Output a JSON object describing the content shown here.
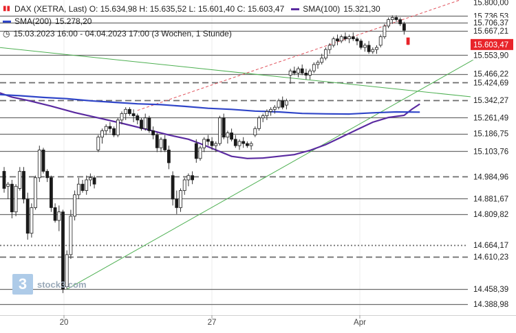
{
  "header": {
    "icon": "candlestick-icon",
    "line1": "DAX (XETRA, Last)  O: 15.634,98  H: 15.635,52  L: 15.601,40  C: 15.603,47",
    "sma100_label": "SMA(100)",
    "sma100_value": "15.321,30",
    "sma200_label": "SMA(200)",
    "sma200_value": "15.278,20",
    "range": "15.03.2023 16:00 - 04.04.2023 17:00  (3 Wochen, 1 Stunde)"
  },
  "logo": {
    "mark": "3",
    "text": "stock3.com"
  },
  "colors": {
    "sma100": "#5a2aa0",
    "sma200": "#2f45c8",
    "trend_green": "#4caf50",
    "resistance_red": "#e0505a",
    "last_price_bg": "#e8242a"
  },
  "chart_data": {
    "type": "candlestick",
    "instrument": "DAX (XETRA, Last)",
    "interval": "1 Stunde",
    "ylim": [
      14340,
      15800
    ],
    "xaxis_ticks": [
      {
        "label": "20",
        "date": "2023-03-20"
      },
      {
        "label": "27",
        "date": "2023-03-27"
      },
      {
        "label": "Apr",
        "date": "2023-04-03"
      }
    ],
    "price_labels": [
      15800.0,
      15736.53,
      15706.37,
      15667.21,
      15553.9,
      15466.22,
      15424.69,
      15342.27,
      15261.49,
      15186.75,
      15103.76,
      14984.96,
      14881.67,
      14809.82,
      14664.17,
      14610.23,
      14458.39,
      14388.98
    ],
    "last_price": 15603.47,
    "ohlc_last": {
      "open": 15634.98,
      "high": 15635.52,
      "low": 15601.4,
      "close": 15603.47
    },
    "levels": [
      {
        "value": 15736.53,
        "style": "solid"
      },
      {
        "value": 15706.37,
        "style": "solid"
      },
      {
        "value": 15667.21,
        "style": "solid"
      },
      {
        "value": 15553.9,
        "style": "solid"
      },
      {
        "value": 15466.22,
        "style": "solid"
      },
      {
        "value": 15424.69,
        "style": "dashed"
      },
      {
        "value": 15342.27,
        "style": "dashed"
      },
      {
        "value": 15261.49,
        "style": "solid"
      },
      {
        "value": 15186.75,
        "style": "solid"
      },
      {
        "value": 15103.76,
        "style": "solid"
      },
      {
        "value": 14984.96,
        "style": "dashed"
      },
      {
        "value": 14881.67,
        "style": "solid"
      },
      {
        "value": 14809.82,
        "style": "solid"
      },
      {
        "value": 14664.17,
        "style": "dotted"
      },
      {
        "value": 14610.23,
        "style": "dashed"
      },
      {
        "value": 14458.39,
        "style": "solid"
      },
      {
        "value": 14388.98,
        "style": "solid"
      }
    ],
    "trendlines": [
      {
        "color": "green",
        "style": "solid",
        "from": {
          "bar": 16,
          "price": 14458
        },
        "to": {
          "bar": 121,
          "price": 15546
        }
      },
      {
        "color": "green",
        "style": "solid",
        "from": {
          "bar": -2,
          "price": 15591
        },
        "to": {
          "bar": 121,
          "price": 15355
        }
      },
      {
        "color": "red",
        "style": "dashed",
        "from": {
          "bar": 34,
          "price": 15295
        },
        "to": {
          "bar": 121,
          "price": 15842
        }
      }
    ],
    "series": [
      {
        "name": "SMA(100)",
        "values": [
          [
            -2,
            15383
          ],
          [
            2,
            15357
          ],
          [
            6,
            15342
          ],
          [
            12,
            15315
          ],
          [
            18,
            15285
          ],
          [
            24,
            15260
          ],
          [
            30,
            15235
          ],
          [
            36,
            15208
          ],
          [
            42,
            15180
          ],
          [
            47,
            15160
          ],
          [
            50,
            15140
          ],
          [
            54,
            15110
          ],
          [
            58,
            15080
          ],
          [
            62,
            15070
          ],
          [
            66,
            15072
          ],
          [
            70,
            15080
          ],
          [
            74,
            15088
          ],
          [
            78,
            15108
          ],
          [
            82,
            15135
          ],
          [
            86,
            15170
          ],
          [
            90,
            15205
          ],
          [
            94,
            15240
          ],
          [
            98,
            15262
          ],
          [
            102,
            15272
          ],
          [
            104,
            15301
          ],
          [
            106,
            15325
          ]
        ]
      },
      {
        "name": "SMA(200)",
        "values": [
          [
            -2,
            15370
          ],
          [
            4,
            15364
          ],
          [
            10,
            15356
          ],
          [
            16,
            15350
          ],
          [
            22,
            15340
          ],
          [
            28,
            15333
          ],
          [
            34,
            15326
          ],
          [
            40,
            15322
          ],
          [
            46,
            15314
          ],
          [
            52,
            15305
          ],
          [
            58,
            15300
          ],
          [
            64,
            15292
          ],
          [
            70,
            15288
          ],
          [
            76,
            15281
          ],
          [
            82,
            15279
          ],
          [
            88,
            15278
          ],
          [
            94,
            15284
          ],
          [
            100,
            15288
          ],
          [
            106,
            15287
          ]
        ]
      }
    ],
    "candles": [
      [
        15010,
        15030,
        14910,
        14930
      ],
      [
        14940,
        14960,
        14880,
        14950
      ],
      [
        14950,
        14970,
        14790,
        14820
      ],
      [
        14820,
        14950,
        14800,
        14940
      ],
      [
        14930,
        15030,
        14920,
        15010
      ],
      [
        15010,
        15030,
        14860,
        14880
      ],
      [
        14880,
        14910,
        14690,
        14720
      ],
      [
        14720,
        14860,
        14700,
        14840
      ],
      [
        14840,
        14990,
        14830,
        14980
      ],
      [
        14980,
        15130,
        14960,
        15110
      ],
      [
        15110,
        15120,
        15000,
        15010
      ],
      [
        15010,
        15020,
        14960,
        14980
      ],
      [
        14980,
        14990,
        14820,
        14840
      ],
      [
        14840,
        14860,
        14770,
        14780
      ],
      [
        14780,
        14850,
        14730,
        14820
      ],
      [
        14820,
        14830,
        14440,
        14458
      ],
      [
        14470,
        14640,
        14460,
        14620
      ],
      [
        14620,
        14830,
        14600,
        14800
      ],
      [
        14800,
        14920,
        14780,
        14900
      ],
      [
        14900,
        14980,
        14880,
        14950
      ],
      [
        14950,
        14970,
        14910,
        14920
      ],
      [
        14920,
        14990,
        14900,
        14970
      ],
      [
        14970,
        15000,
        14940,
        14980
      ],
      [
        14980,
        14990,
        14930,
        14950
      ],
      [
        15110,
        15180,
        15100,
        15170
      ],
      [
        15170,
        15210,
        15140,
        15200
      ],
      [
        15200,
        15230,
        15180,
        15220
      ],
      [
        15220,
        15240,
        15190,
        15210
      ],
      [
        15210,
        15220,
        15170,
        15180
      ],
      [
        15180,
        15260,
        15170,
        15250
      ],
      [
        15250,
        15290,
        15230,
        15280
      ],
      [
        15280,
        15310,
        15250,
        15300
      ],
      [
        15300,
        15310,
        15270,
        15280
      ],
      [
        15280,
        15300,
        15240,
        15270
      ],
      [
        15270,
        15280,
        15230,
        15250
      ],
      [
        15250,
        15260,
        15200,
        15210
      ],
      [
        15210,
        15280,
        15200,
        15260
      ],
      [
        15260,
        15270,
        15190,
        15200
      ],
      [
        15200,
        15220,
        15160,
        15180
      ],
      [
        15180,
        15190,
        15100,
        15120
      ],
      [
        15120,
        15170,
        15100,
        15160
      ],
      [
        15160,
        15180,
        15100,
        15110
      ],
      [
        15110,
        15130,
        15020,
        15050
      ],
      [
        14990,
        15010,
        14850,
        14880
      ],
      [
        14880,
        14920,
        14810,
        14840
      ],
      [
        14840,
        14930,
        14820,
        14920
      ],
      [
        14920,
        14980,
        14900,
        14970
      ],
      [
        14970,
        15000,
        14940,
        14990
      ],
      [
        14990,
        15010,
        14950,
        14970
      ],
      [
        15140,
        15160,
        15050,
        15070
      ],
      [
        15070,
        15130,
        15060,
        15120
      ],
      [
        15120,
        15170,
        15100,
        15160
      ],
      [
        15160,
        15180,
        15130,
        15150
      ],
      [
        15150,
        15170,
        15110,
        15130
      ],
      [
        15130,
        15150,
        15100,
        15140
      ],
      [
        15140,
        15270,
        15130,
        15260
      ],
      [
        15260,
        15280,
        15160,
        15170
      ],
      [
        15170,
        15200,
        15140,
        15190
      ],
      [
        15190,
        15210,
        15150,
        15160
      ],
      [
        15160,
        15180,
        15120,
        15130
      ],
      [
        15130,
        15160,
        15110,
        15150
      ],
      [
        15150,
        15170,
        15120,
        15140
      ],
      [
        15140,
        15150,
        15120,
        15130
      ],
      [
        15130,
        15150,
        15110,
        15140
      ],
      [
        15180,
        15220,
        15170,
        15210
      ],
      [
        15210,
        15270,
        15200,
        15260
      ],
      [
        15260,
        15280,
        15240,
        15270
      ],
      [
        15270,
        15300,
        15250,
        15290
      ],
      [
        15290,
        15310,
        15270,
        15300
      ],
      [
        15300,
        15320,
        15280,
        15310
      ],
      [
        15310,
        15350,
        15300,
        15340
      ],
      [
        15340,
        15360,
        15300,
        15310
      ],
      [
        15320,
        15350,
        15300,
        15340
      ],
      [
        15460,
        15490,
        15420,
        15480
      ],
      [
        15480,
        15500,
        15460,
        15470
      ],
      [
        15470,
        15500,
        15450,
        15490
      ],
      [
        15490,
        15510,
        15460,
        15470
      ],
      [
        15470,
        15490,
        15440,
        15460
      ],
      [
        15460,
        15490,
        15440,
        15480
      ],
      [
        15480,
        15520,
        15470,
        15510
      ],
      [
        15510,
        15530,
        15490,
        15520
      ],
      [
        15520,
        15560,
        15510,
        15540
      ],
      [
        15540,
        15590,
        15530,
        15580
      ],
      [
        15580,
        15610,
        15560,
        15600
      ],
      [
        15600,
        15640,
        15590,
        15630
      ],
      [
        15630,
        15650,
        15600,
        15620
      ],
      [
        15620,
        15650,
        15610,
        15640
      ],
      [
        15640,
        15660,
        15620,
        15630
      ],
      [
        15630,
        15650,
        15610,
        15640
      ],
      [
        15640,
        15660,
        15620,
        15630
      ],
      [
        15630,
        15640,
        15600,
        15620
      ],
      [
        15620,
        15630,
        15580,
        15590
      ],
      [
        15590,
        15610,
        15570,
        15600
      ],
      [
        15600,
        15620,
        15560,
        15570
      ],
      [
        15570,
        15590,
        15560,
        15580
      ],
      [
        15580,
        15600,
        15560,
        15590
      ],
      [
        15600,
        15650,
        15590,
        15640
      ],
      [
        15640,
        15700,
        15630,
        15690
      ],
      [
        15690,
        15730,
        15680,
        15720
      ],
      [
        15720,
        15740,
        15700,
        15730
      ],
      [
        15730,
        15740,
        15710,
        15720
      ],
      [
        15720,
        15730,
        15690,
        15700
      ],
      [
        15700,
        15710,
        15650,
        15670
      ],
      [
        15634.98,
        15635.52,
        15601.4,
        15603.47
      ]
    ]
  }
}
